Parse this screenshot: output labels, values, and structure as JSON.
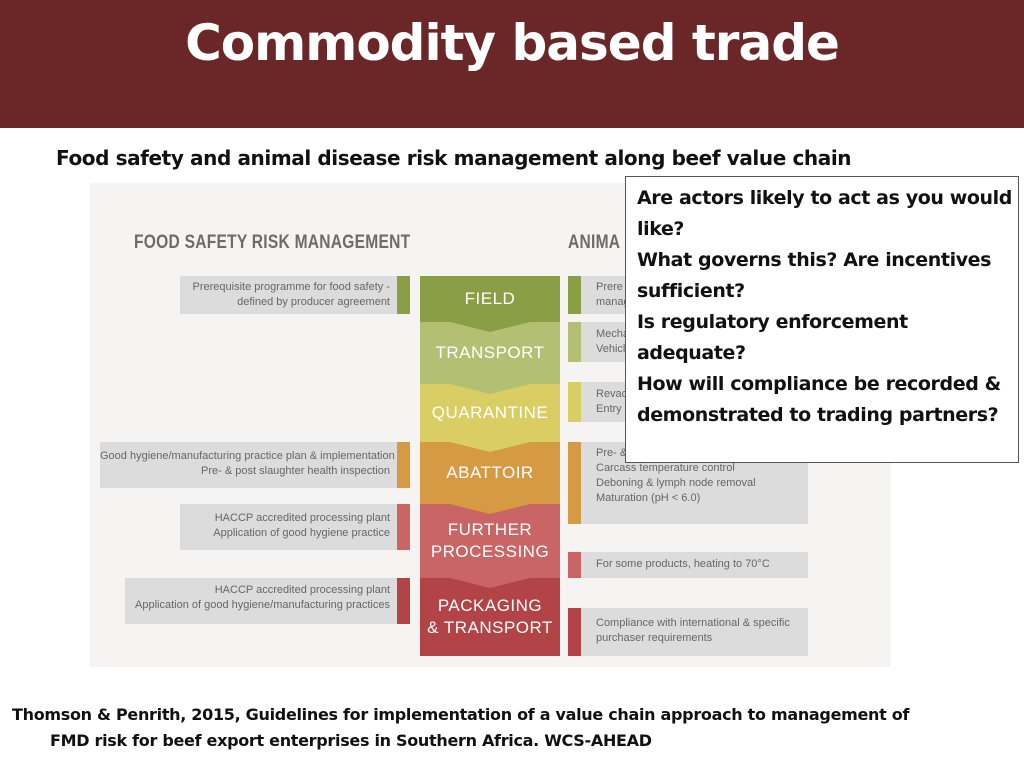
{
  "slide_title": "Commodity based trade",
  "subtitle": "Food safety and animal disease risk management along beef value chain",
  "diagram": {
    "left_heading": "FOOD SAFETY RISK MANAGEMENT",
    "right_heading": "ANIMA",
    "stages": [
      {
        "lines": [
          "FIELD"
        ],
        "color": "#8a9f45"
      },
      {
        "lines": [
          "TRANSPORT"
        ],
        "color": "#b3c074"
      },
      {
        "lines": [
          "QUARANTINE"
        ],
        "color": "#d9cd64"
      },
      {
        "lines": [
          "ABATTOIR"
        ],
        "color": "#d69a45"
      },
      {
        "lines": [
          "FURTHER",
          "PROCESSING"
        ],
        "color": "#c96564"
      },
      {
        "lines": [
          "PACKAGING",
          "& TRANSPORT"
        ],
        "color": "#b24447"
      }
    ],
    "left_boxes": [
      {
        "lines": [
          "Prerequisite programme for food safety -",
          "defined by producer agreement"
        ]
      },
      {
        "lines": [
          "Good hygiene/manufacturing practice plan & implementation",
          "Pre- & post slaughter health inspection"
        ]
      },
      {
        "lines": [
          "HACCP accredited processing plant",
          "Application of good hygiene practice"
        ]
      },
      {
        "lines": [
          "HACCP accredited processing plant",
          "Application of good hygiene/manufacturing practices"
        ]
      }
    ],
    "right_boxes": [
      {
        "lines": [
          "Prere",
          "manag"
        ]
      },
      {
        "lines": [
          "Mecha",
          "Vehicl"
        ]
      },
      {
        "lines": [
          "Revac",
          "Entry"
        ]
      },
      {
        "lines": [
          "Pre- &",
          "Carcass temperature control",
          "Deboning & lymph node removal",
          "Maturation (pH < 6.0)"
        ]
      },
      {
        "lines": [
          "For some products, heating to 70°C"
        ]
      },
      {
        "lines": [
          "Compliance with international & specific",
          "purchaser requirements"
        ]
      }
    ]
  },
  "questions": [
    "Are actors likely to act as you would",
    "like?",
    "What governs this? Are incentives",
    "sufficient?",
    "Is regulatory enforcement",
    "adequate?",
    "How will compliance be recorded &",
    "demonstrated to trading partners?"
  ],
  "citation": [
    "Thomson & Penrith, 2015, Guidelines for implementation of a value chain approach to management of",
    "FMD risk for beef export enterprises in Southern Africa. WCS-AHEAD"
  ]
}
